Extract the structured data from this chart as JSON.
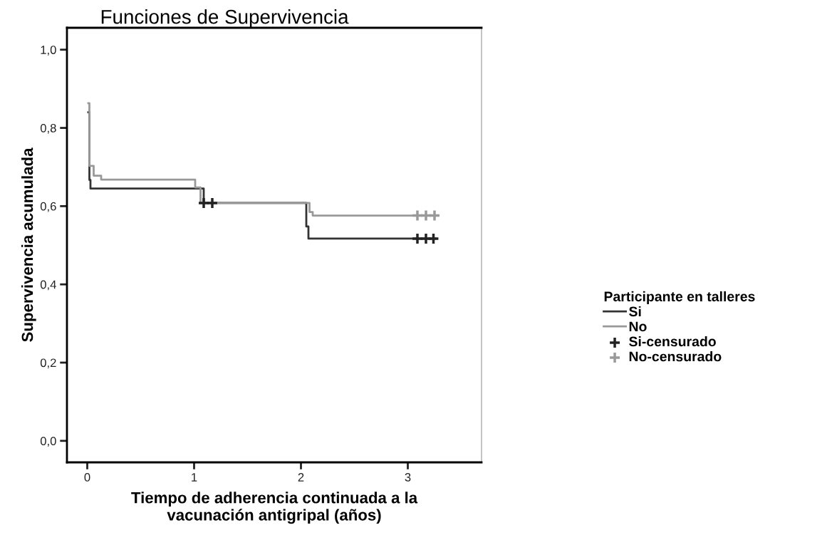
{
  "chart_data": {
    "type": "step",
    "title": "Funciones de Supervivencia",
    "xlabel": "Tiempo de adherencia continuada a la\nvacunación antigripal (años)",
    "ylabel": "Supervivencia acumulada",
    "legend_title": "Participante en talleres",
    "xlim": [
      -0.19,
      3.69
    ],
    "xticks": [
      0,
      1,
      2,
      3
    ],
    "ylim": [
      -0.055,
      1.056
    ],
    "yticks": [
      {
        "value": 0,
        "label": "0,0"
      },
      {
        "value": 0.2,
        "label": "0,2"
      },
      {
        "value": 0.4,
        "label": "0,4"
      },
      {
        "value": 0.6,
        "label": "0,6"
      },
      {
        "value": 0.8,
        "label": "0,8"
      },
      {
        "value": 1.0,
        "label": "1,0"
      }
    ],
    "grid": false,
    "legend": "right",
    "series": [
      {
        "name": "Si",
        "color": "#333333",
        "x": [
          0.01,
          0.02,
          0.03,
          1.09,
          2.05,
          2.07,
          3.26
        ],
        "values": [
          0.84,
          0.667,
          0.645,
          0.608,
          0.548,
          0.517,
          0.517
        ]
      },
      {
        "name": "No",
        "color": "#999999",
        "x": [
          0.01,
          0.02,
          0.06,
          0.13,
          1.01,
          1.06,
          2.08,
          2.11,
          3.28
        ],
        "values": [
          0.863,
          0.703,
          0.678,
          0.668,
          0.648,
          0.608,
          0.585,
          0.576,
          0.576
        ]
      },
      {
        "name": "Si-censurado",
        "type": "scatter",
        "marker": "cross",
        "color": "#222222",
        "x": [
          1.09,
          1.17,
          3.09,
          3.17,
          3.24
        ],
        "values": [
          0.608,
          0.608,
          0.517,
          0.517,
          0.517
        ]
      },
      {
        "name": "No-censurado",
        "type": "scatter",
        "marker": "cross",
        "color": "#999999",
        "x": [
          3.09,
          3.17,
          3.25
        ],
        "values": [
          0.576,
          0.576,
          0.576
        ]
      }
    ]
  }
}
